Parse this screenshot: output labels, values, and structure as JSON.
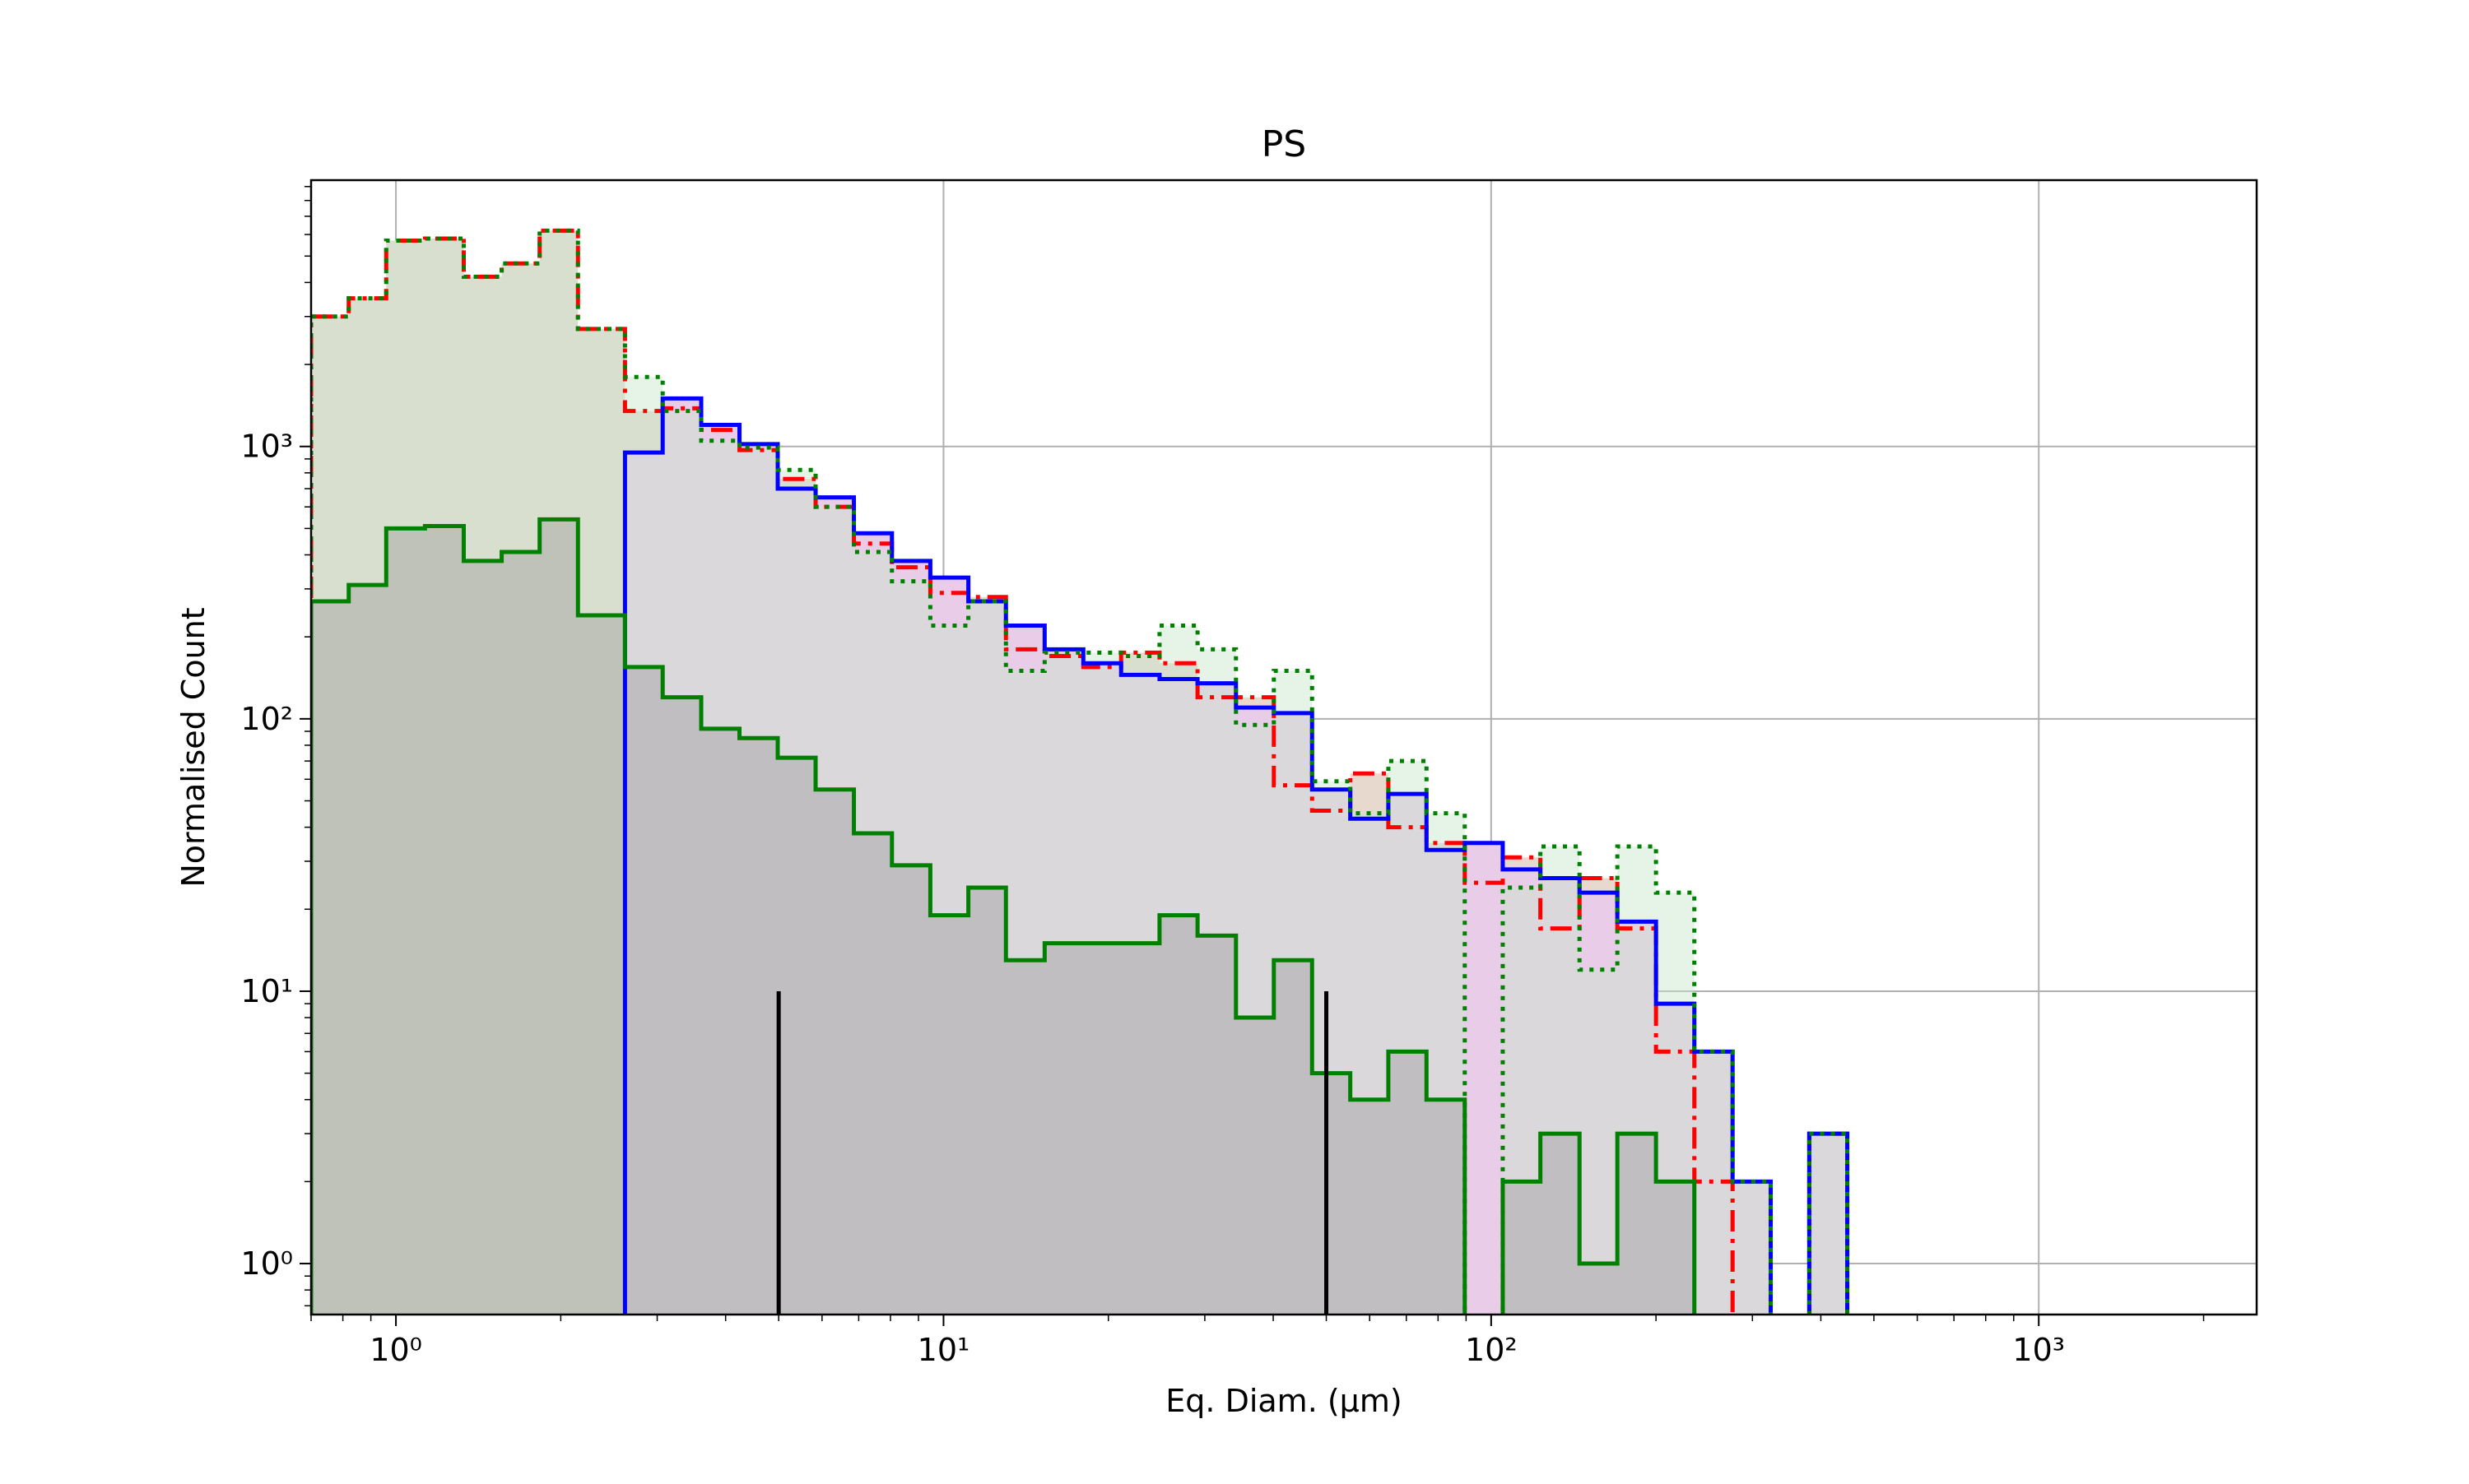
{
  "chart_data": {
    "type": "histogram",
    "title": "PS",
    "xlabel": "Eq. Diam. (µm)",
    "ylabel": "Normalised Count",
    "xscale": "log",
    "yscale": "log",
    "xlim": [
      0.7,
      2500
    ],
    "ylim": [
      0.65,
      9500
    ],
    "xticks": [
      {
        "value": 1,
        "label": "10⁰"
      },
      {
        "value": 10,
        "label": "10¹"
      },
      {
        "value": 100,
        "label": "10²"
      },
      {
        "value": 1000,
        "label": "10³"
      }
    ],
    "yticks": [
      {
        "value": 1,
        "label": "10⁰"
      },
      {
        "value": 10,
        "label": "10¹"
      },
      {
        "value": 100,
        "label": "10²"
      },
      {
        "value": 1000,
        "label": "10³"
      }
    ],
    "grid": true,
    "legend": "none",
    "bin_edges": [
      0.7,
      0.82,
      0.96,
      1.13,
      1.33,
      1.56,
      1.83,
      2.15,
      2.62,
      3.07,
      3.61,
      4.24,
      4.98,
      5.84,
      6.86,
      8.05,
      9.46,
      11.1,
      13.0,
      15.3,
      18.0,
      21.1,
      24.8,
      29.1,
      34.2,
      40.1,
      47.1,
      55.3,
      64.9,
      76.2,
      89.5,
      105,
      123,
      145,
      170,
      200,
      235,
      276,
      324,
      381,
      447,
      525
    ],
    "series": [
      {
        "key": "red",
        "color": "#ff0000",
        "fill": "#e8d9cf",
        "linestyle": "dashdot",
        "values": [
          3000,
          3500,
          5700,
          5800,
          4200,
          4700,
          6200,
          2700,
          1350,
          1380,
          1150,
          970,
          760,
          600,
          440,
          360,
          290,
          280,
          180,
          170,
          155,
          175,
          160,
          120,
          120,
          57,
          46,
          63,
          40,
          35,
          25,
          31,
          17,
          26,
          17,
          6,
          2,
          0,
          0,
          3,
          0
        ]
      },
      {
        "key": "blue",
        "color": "#0000ff",
        "fill": "#e9cde8",
        "linestyle": "solid",
        "values": [
          0,
          0,
          0,
          0,
          0,
          0,
          0,
          0,
          950,
          1500,
          1200,
          1020,
          700,
          650,
          480,
          380,
          330,
          270,
          220,
          180,
          160,
          145,
          140,
          135,
          110,
          105,
          55,
          43,
          53,
          33,
          35,
          28,
          26,
          23,
          18,
          9,
          6,
          2,
          0,
          3,
          0
        ]
      },
      {
        "key": "green-dotted",
        "color": "#008000",
        "fill": "rgba(200,230,205,0.45)",
        "linestyle": "dotted",
        "values": [
          3000,
          3500,
          5700,
          5800,
          4200,
          4700,
          6200,
          2700,
          1800,
          1350,
          1050,
          990,
          820,
          600,
          410,
          320,
          220,
          270,
          150,
          175,
          175,
          170,
          220,
          180,
          95,
          150,
          59,
          45,
          70,
          45,
          0,
          24,
          34,
          12,
          34,
          23,
          6,
          2,
          0,
          3,
          0
        ]
      },
      {
        "key": "green-solid",
        "color": "#008000",
        "fill": "rgba(160,160,160,0.45)",
        "linestyle": "solid",
        "values": [
          270,
          310,
          500,
          510,
          380,
          410,
          540,
          240,
          155,
          120,
          92,
          85,
          72,
          55,
          38,
          29,
          19,
          24,
          13,
          15,
          15,
          15,
          19,
          16,
          8,
          13,
          5,
          4,
          6,
          4,
          0,
          2,
          3,
          1,
          3,
          2,
          0,
          0,
          0,
          0,
          0
        ]
      }
    ],
    "vlines": [
      {
        "x": 5,
        "ymax": 10,
        "color": "#000000"
      },
      {
        "x": 50,
        "ymax": 10,
        "color": "#000000"
      }
    ]
  }
}
